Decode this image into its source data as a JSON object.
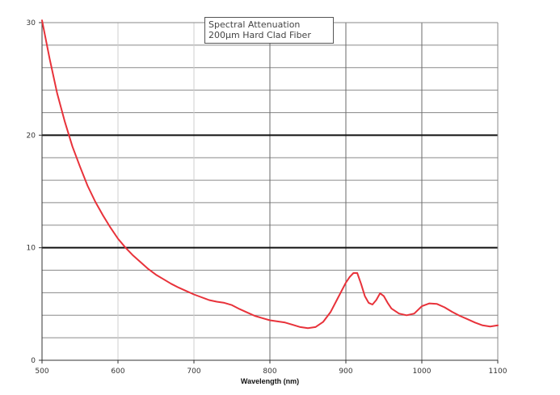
{
  "chart_data": {
    "type": "line",
    "title": [
      "Spectral Attenuation",
      "200µm Hard Clad Fiber"
    ],
    "xlabel": "Wavelength (nm)",
    "ylabel": "",
    "xlim": [
      500,
      1100
    ],
    "ylim": [
      0,
      30
    ],
    "x_ticks": [
      500,
      600,
      700,
      800,
      900,
      1000,
      1100
    ],
    "y_ticks": [
      0,
      10,
      20,
      30
    ],
    "y_tick_labels": [
      "0",
      "10",
      "20",
      "30"
    ],
    "major_gridlines_y": [
      10,
      20
    ],
    "minor_grid_step_y": 2,
    "grid": true,
    "line_color": "#e8323a",
    "series": [
      {
        "x": [
          500,
          510,
          520,
          530,
          540,
          550,
          560,
          570,
          580,
          590,
          600,
          610,
          620,
          630,
          640,
          650,
          660,
          670,
          680,
          690,
          700,
          710,
          720,
          730,
          740,
          750,
          760,
          770,
          780,
          790,
          800,
          810,
          820,
          830,
          840,
          850,
          860,
          870,
          880,
          890,
          900,
          905,
          910,
          915,
          920,
          925,
          930,
          935,
          940,
          945,
          950,
          955,
          960,
          970,
          980,
          990,
          1000,
          1010,
          1020,
          1030,
          1040,
          1050,
          1060,
          1070,
          1080,
          1090,
          1100
        ],
        "y": [
          30.2,
          26.8,
          23.7,
          21.2,
          19.0,
          17.2,
          15.5,
          14.1,
          12.9,
          11.8,
          10.8,
          10.0,
          9.3,
          8.7,
          8.1,
          7.6,
          7.2,
          6.8,
          6.45,
          6.15,
          5.85,
          5.6,
          5.35,
          5.2,
          5.1,
          4.9,
          4.55,
          4.25,
          3.95,
          3.75,
          3.55,
          3.45,
          3.35,
          3.15,
          2.95,
          2.85,
          2.95,
          3.4,
          4.3,
          5.6,
          6.9,
          7.4,
          7.75,
          7.75,
          6.8,
          5.7,
          5.1,
          4.95,
          5.35,
          5.95,
          5.7,
          5.1,
          4.6,
          4.15,
          4.0,
          4.15,
          4.8,
          5.05,
          5.0,
          4.7,
          4.3,
          3.95,
          3.65,
          3.35,
          3.1,
          3.0,
          3.1
        ]
      }
    ]
  }
}
